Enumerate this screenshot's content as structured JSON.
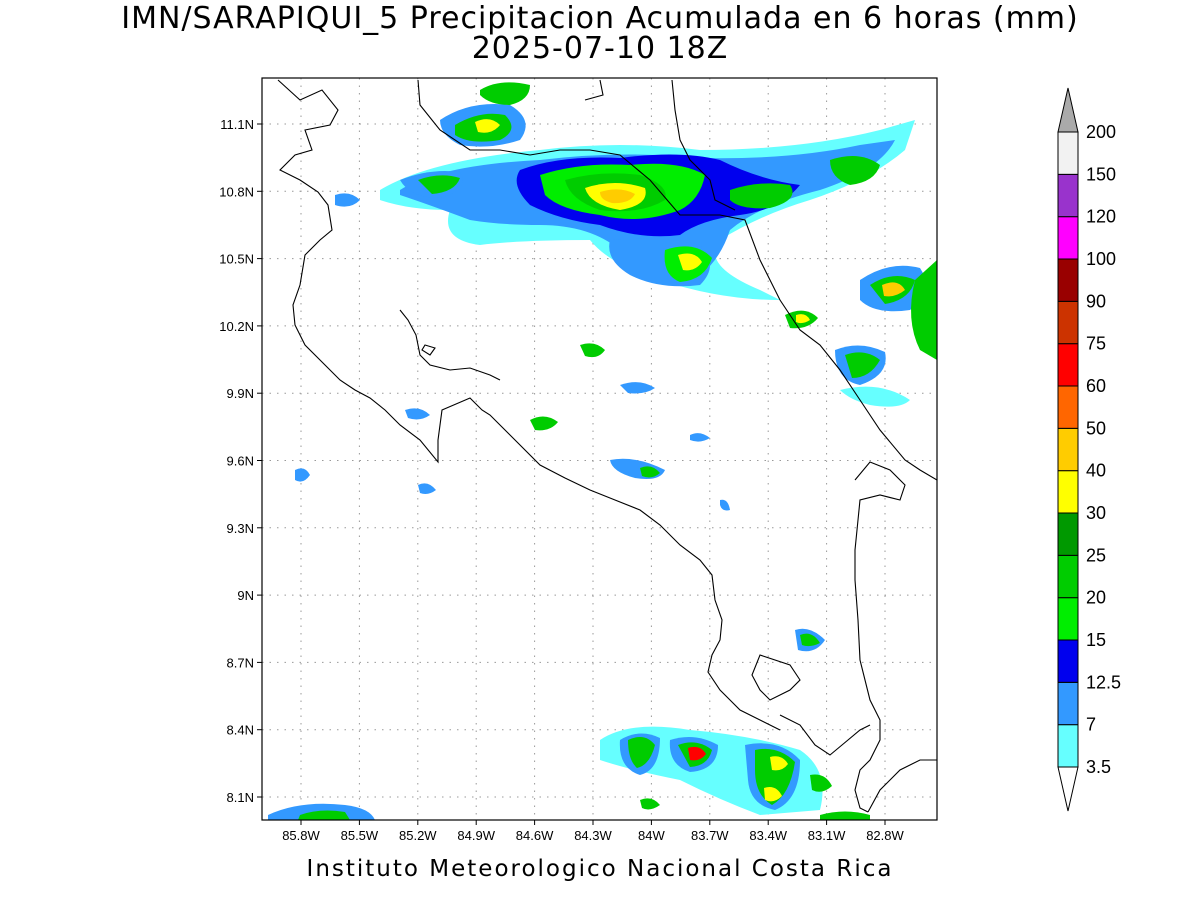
{
  "title": {
    "line1": "IMN/SARAPIQUI_5 Precipitacion Acumulada en 6 horas (mm)",
    "line2": "2025-07-10 18Z"
  },
  "footer": "Instituto Meteorologico Nacional Costa Rica",
  "map": {
    "lat_ticks": [
      "11.1N",
      "10.8N",
      "10.5N",
      "10.2N",
      "9.9N",
      "9.6N",
      "9.3N",
      "9N",
      "8.7N",
      "8.4N",
      "8.1N"
    ],
    "lon_ticks": [
      "85.8W",
      "85.5W",
      "85.2W",
      "84.9W",
      "84.6W",
      "84.3W",
      "84W",
      "83.7W",
      "83.4W",
      "83.1W",
      "82.8W"
    ],
    "grid": true
  },
  "colorbar": {
    "levels": [
      "3.5",
      "7",
      "12.5",
      "15",
      "20",
      "25",
      "30",
      "40",
      "50",
      "60",
      "75",
      "90",
      "100",
      "120",
      "150",
      "200"
    ],
    "colors": [
      "#66ffff",
      "#3399ff",
      "#0000ee",
      "#00ee00",
      "#00cc00",
      "#009900",
      "#ffff00",
      "#ffcc00",
      "#ff6600",
      "#ff0000",
      "#cc3300",
      "#990000",
      "#ff00ff",
      "#9933cc",
      "#f2f2f2",
      "#aaaaaa"
    ]
  }
}
